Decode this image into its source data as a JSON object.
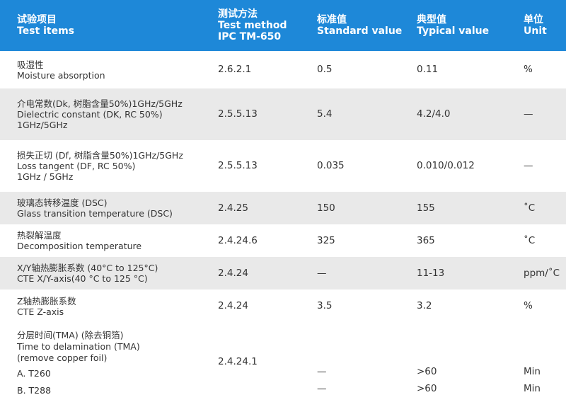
{
  "header": {
    "col1": {
      "zh": "试验项目",
      "en": "Test items"
    },
    "col2": {
      "zh": "测试方法",
      "en": "Test method",
      "en2": "IPC TM-650"
    },
    "col3": {
      "zh": "标准值",
      "en": "Standard value"
    },
    "col4": {
      "zh": "典型值",
      "en": "Typical value"
    },
    "col5": {
      "zh": "单位",
      "en": "Unit"
    }
  },
  "rows": [
    {
      "zh": "吸湿性",
      "en": "Moisture absorption",
      "en2": "",
      "method": "2.6.2.1",
      "standard": "0.5",
      "typical": "0.11",
      "unit": "%"
    },
    {
      "zh": "介电常数(Dk, 树脂含量50%)1GHz/5GHz",
      "en": "Dielectric constant (DK, RC 50%)",
      "en2": "1GHz/5GHz",
      "method": "2.5.5.13",
      "standard": "5.4",
      "typical": "4.2/4.0",
      "unit": "—"
    },
    {
      "zh": "损失正切 (Df, 树脂含量50%)1GHz/5GHz",
      "en": "Loss tangent (DF, RC 50%)",
      "en2": "1GHz / 5GHz",
      "method": "2.5.5.13",
      "standard": "0.035",
      "typical": "0.010/0.012",
      "unit": "—"
    },
    {
      "zh": "玻璃态转移温度 (DSC)",
      "en": "Glass transition temperature (DSC)",
      "en2": "",
      "method": "2.4.25",
      "standard": "150",
      "typical": "155",
      "unit": "˚C"
    },
    {
      "zh": "热裂解温度",
      "en": "Decomposition temperature",
      "en2": "",
      "method": "2.4.24.6",
      "standard": "325",
      "typical": "365",
      "unit": "˚C"
    },
    {
      "zh": "X/Y轴热膨胀系数 (40°C to 125°C)",
      "en": "CTE X/Y-axis(40 °C to 125 °C)",
      "en2": "",
      "method": "2.4.24",
      "standard": "—",
      "typical": "11-13",
      "unit": "ppm/˚C"
    },
    {
      "zh": "Z轴热膨胀系数",
      "en": "CTE Z-axis",
      "en2": "",
      "method": "2.4.24",
      "standard": "3.5",
      "typical": "3.2",
      "unit": "%"
    }
  ],
  "delam": {
    "zh": "分层时间(TMA) (除去铜箔)",
    "en": "Time to delamination (TMA)",
    "en2": "(remove copper foil)",
    "method": "2.4.24.1",
    "a": {
      "label": "A. T260",
      "standard": "—",
      "typical": ">60",
      "unit": "Min"
    },
    "b": {
      "label": "B. T288",
      "standard": "—",
      "typical": ">60",
      "unit": "Min"
    }
  },
  "colors": {
    "header_bg": "#1e88d8",
    "alt_row": "#e9e9e9"
  }
}
